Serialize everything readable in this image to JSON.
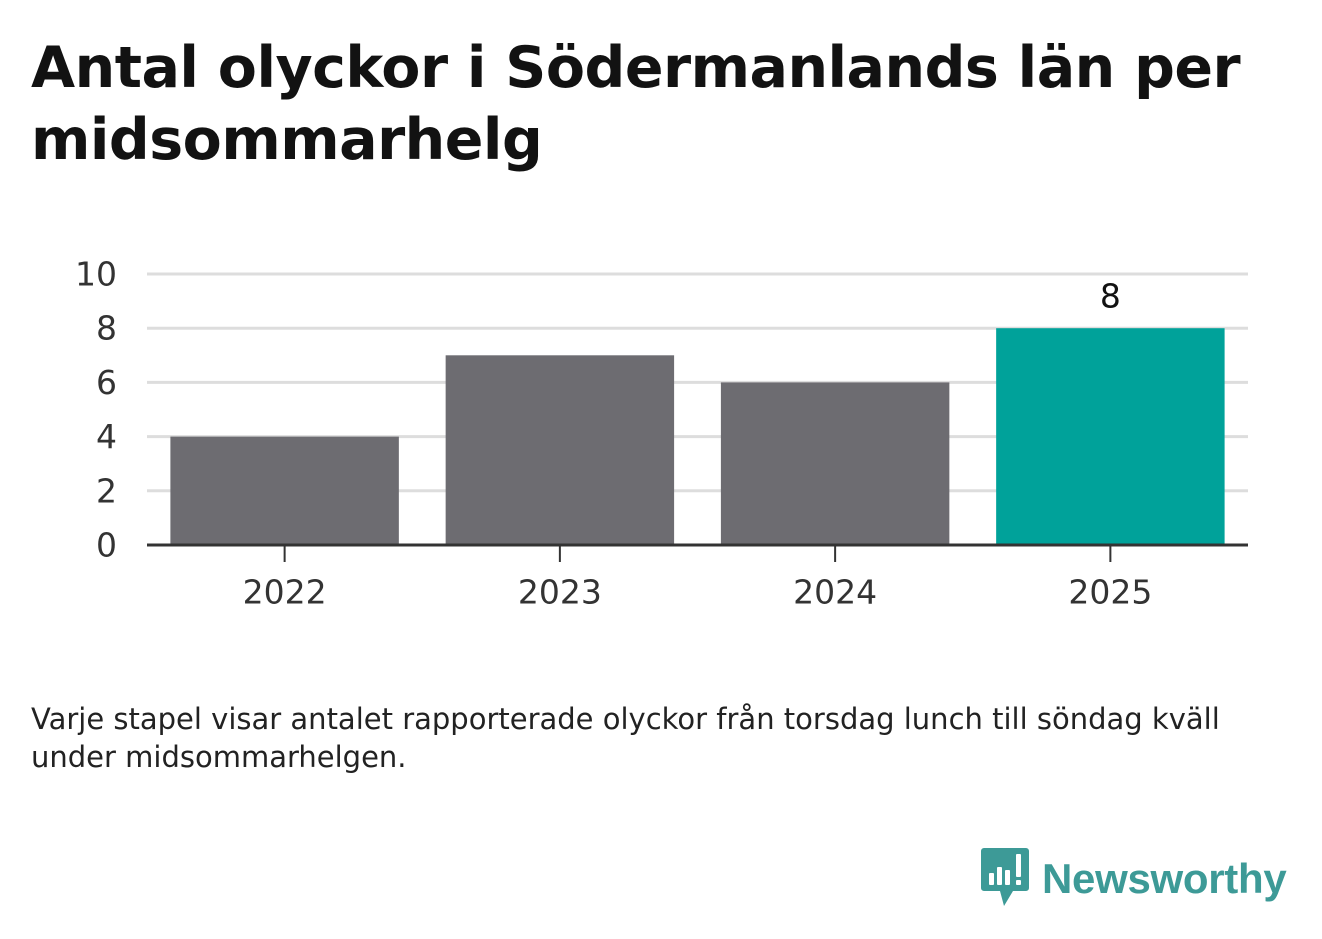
{
  "chart_data": {
    "type": "bar",
    "title": "Antal olyckor i Södermanlands län per midsommarhelg",
    "categories": [
      "2022",
      "2023",
      "2024",
      "2025"
    ],
    "values": [
      4,
      7,
      6,
      8
    ],
    "highlight_index": 3,
    "data_labels": [
      {
        "category": "2025",
        "text": "8"
      }
    ],
    "y_ticks": [
      "0",
      "2",
      "4",
      "6",
      "8",
      "10"
    ],
    "ylim": [
      0,
      10
    ],
    "xlabel": "",
    "ylabel": "",
    "grid": true,
    "colors": {
      "bar": "#6d6c71",
      "highlight": "#00a29a",
      "grid": "#dddddd",
      "axis": "#333333"
    }
  },
  "caption": "Varje stapel visar antalet rapporterade olyckor från torsdag lunch till söndag kväll under midsommarhelgen.",
  "logo": {
    "text": "Newsworthy",
    "icon": "newsworthy-chat-bars-icon"
  }
}
